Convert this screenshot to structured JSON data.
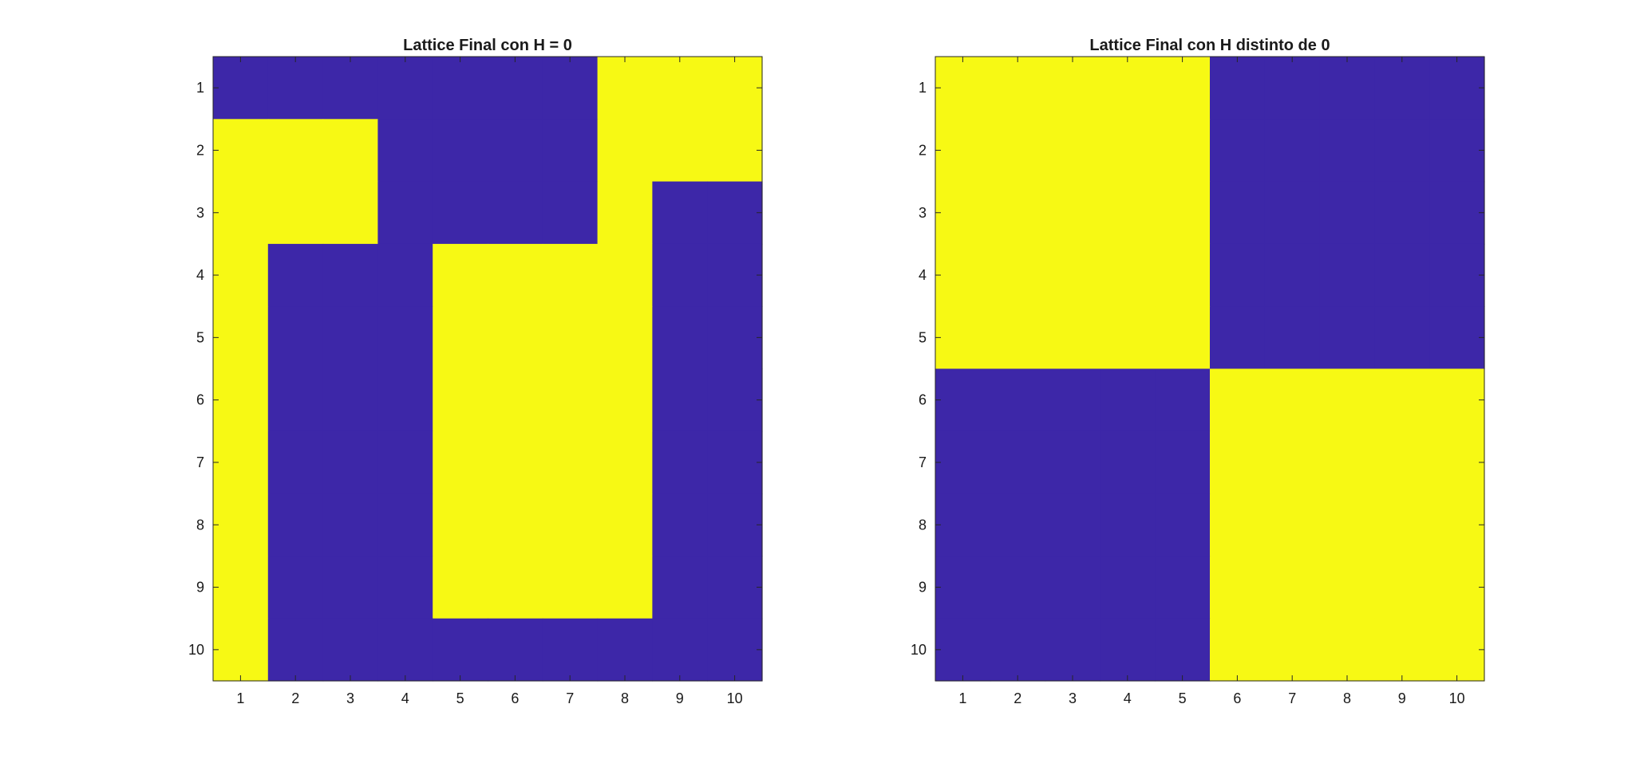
{
  "colors": {
    "low": "#3d27a8",
    "high": "#f7f914",
    "axis": "#262626",
    "background": "#ffffff"
  },
  "chart_data": [
    {
      "type": "heatmap",
      "title": "Lattice Final con H = 0",
      "xlabel": "",
      "ylabel": "",
      "x_ticks": [
        "1",
        "2",
        "3",
        "4",
        "5",
        "6",
        "7",
        "8",
        "9",
        "10"
      ],
      "y_ticks": [
        "1",
        "2",
        "3",
        "4",
        "5",
        "6",
        "7",
        "8",
        "9",
        "10"
      ],
      "xlim": [
        0.5,
        10.5
      ],
      "ylim": [
        0.5,
        10.5
      ],
      "y_direction": "reverse",
      "colormap": [
        "#3d27a8",
        "#f7f914"
      ],
      "values": [
        [
          0,
          0,
          0,
          0,
          0,
          0,
          0,
          1,
          1,
          1
        ],
        [
          1,
          1,
          1,
          0,
          0,
          0,
          0,
          1,
          1,
          1
        ],
        [
          1,
          1,
          1,
          0,
          0,
          0,
          0,
          1,
          0,
          0
        ],
        [
          1,
          0,
          0,
          0,
          1,
          1,
          1,
          1,
          0,
          0
        ],
        [
          1,
          0,
          0,
          0,
          1,
          1,
          1,
          1,
          0,
          0
        ],
        [
          1,
          0,
          0,
          0,
          1,
          1,
          1,
          1,
          0,
          0
        ],
        [
          1,
          0,
          0,
          0,
          1,
          1,
          1,
          1,
          0,
          0
        ],
        [
          1,
          0,
          0,
          0,
          1,
          1,
          1,
          1,
          0,
          0
        ],
        [
          1,
          0,
          0,
          0,
          1,
          1,
          1,
          1,
          0,
          0
        ],
        [
          1,
          0,
          0,
          0,
          0,
          0,
          0,
          0,
          0,
          0
        ]
      ]
    },
    {
      "type": "heatmap",
      "title": "Lattice Final con H distinto de 0",
      "xlabel": "",
      "ylabel": "",
      "x_ticks": [
        "1",
        "2",
        "3",
        "4",
        "5",
        "6",
        "7",
        "8",
        "9",
        "10"
      ],
      "y_ticks": [
        "1",
        "2",
        "3",
        "4",
        "5",
        "6",
        "7",
        "8",
        "9",
        "10"
      ],
      "xlim": [
        0.5,
        10.5
      ],
      "ylim": [
        0.5,
        10.5
      ],
      "y_direction": "reverse",
      "colormap": [
        "#3d27a8",
        "#f7f914"
      ],
      "values": [
        [
          1,
          1,
          1,
          1,
          1,
          0,
          0,
          0,
          0,
          0
        ],
        [
          1,
          1,
          1,
          1,
          1,
          0,
          0,
          0,
          0,
          0
        ],
        [
          1,
          1,
          1,
          1,
          1,
          0,
          0,
          0,
          0,
          0
        ],
        [
          1,
          1,
          1,
          1,
          1,
          0,
          0,
          0,
          0,
          0
        ],
        [
          1,
          1,
          1,
          1,
          1,
          0,
          0,
          0,
          0,
          0
        ],
        [
          0,
          0,
          0,
          0,
          0,
          1,
          1,
          1,
          1,
          1
        ],
        [
          0,
          0,
          0,
          0,
          0,
          1,
          1,
          1,
          1,
          1
        ],
        [
          0,
          0,
          0,
          0,
          0,
          1,
          1,
          1,
          1,
          1
        ],
        [
          0,
          0,
          0,
          0,
          0,
          1,
          1,
          1,
          1,
          1
        ],
        [
          0,
          0,
          0,
          0,
          0,
          1,
          1,
          1,
          1,
          1
        ]
      ]
    }
  ]
}
